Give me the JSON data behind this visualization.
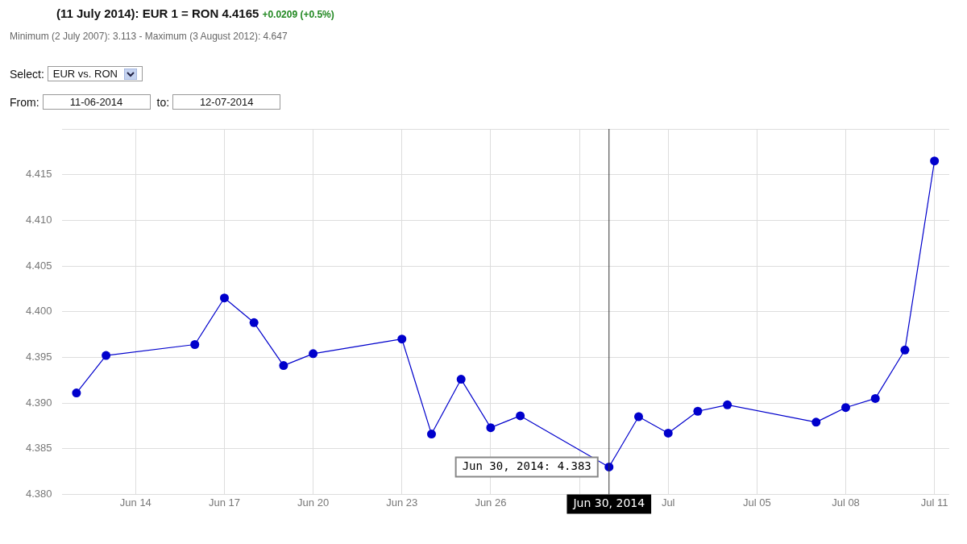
{
  "chart_data": {
    "type": "line",
    "title": "(11 July 2014): EUR 1 = RON 4.4165",
    "subtitle": "Minimum (2 July 2007): 3.113 - Maximum (3 August 2012): 4.647",
    "annotations": [
      "+0.0209 (+0.5%)",
      "Select:",
      "EUR vs. RON",
      "From:",
      "11-06-2014",
      "to:",
      "12-07-2014",
      {
        "text": "Jun 30, 2014: 4.383",
        "x": "2014-06-30",
        "y": 4.383
      }
    ],
    "x": [
      "2014-06-12",
      "2014-06-13",
      "2014-06-16",
      "2014-06-17",
      "2014-06-18",
      "2014-06-19",
      "2014-06-20",
      "2014-06-23",
      "2014-06-24",
      "2014-06-25",
      "2014-06-26",
      "2014-06-27",
      "2014-06-30",
      "2014-07-01",
      "2014-07-02",
      "2014-07-03",
      "2014-07-04",
      "2014-07-07",
      "2014-07-08",
      "2014-07-09",
      "2014-07-10",
      "2014-07-11"
    ],
    "series": [
      {
        "color": "#0000cc",
        "values": [
          4.3911,
          4.3952,
          4.3964,
          4.4015,
          4.3988,
          4.3941,
          4.3954,
          4.397,
          4.3866,
          4.3926,
          4.3873,
          4.3886,
          4.383,
          4.3885,
          4.3867,
          4.3891,
          4.3898,
          4.3879,
          4.3895,
          4.3905,
          4.3958,
          4.4165
        ]
      }
    ],
    "xlim": [
      "2014-06-11T12:00",
      "2014-07-11T12:00"
    ],
    "xticks": [
      {
        "value": "2014-06-14",
        "label": "Jun 14"
      },
      {
        "value": "2014-06-17",
        "label": "Jun 17"
      },
      {
        "value": "2014-06-20",
        "label": "Jun 20"
      },
      {
        "value": "2014-06-23",
        "label": "Jun 23"
      },
      {
        "value": "2014-06-26",
        "label": "Jun 26"
      },
      {
        "value": "2014-06-29",
        "label": null
      },
      {
        "value": "2014-07-02",
        "label": "Jul"
      },
      {
        "value": "2014-07-05",
        "label": "Jul 05"
      },
      {
        "value": "2014-07-08",
        "label": "Jul 08"
      },
      {
        "value": "2014-07-11",
        "label": "Jul 11"
      }
    ],
    "ylim": [
      4.38,
      4.42
    ],
    "yticks": [
      {
        "value": 4.38,
        "label": "4.380"
      },
      {
        "value": 4.385,
        "label": "4.385"
      },
      {
        "value": 4.39,
        "label": "4.390"
      },
      {
        "value": 4.395,
        "label": "4.395"
      },
      {
        "value": 4.4,
        "label": "4.400"
      },
      {
        "value": 4.405,
        "label": "4.405"
      },
      {
        "value": 4.41,
        "label": "4.410"
      },
      {
        "value": 4.415,
        "label": "4.415"
      },
      {
        "value": 4.42,
        "label": null
      }
    ],
    "ref_lines": [
      {
        "axis": "x",
        "value": "2014-06-30",
        "label": "Jun 30, 2014",
        "color": "#333333"
      }
    ],
    "grid": true,
    "legend": false,
    "marker": "circle",
    "line_style": "solid"
  }
}
